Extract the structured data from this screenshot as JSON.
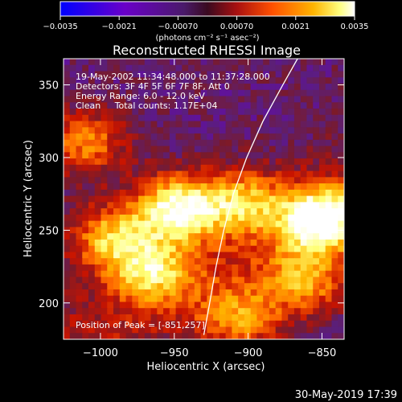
{
  "chart_data": {
    "type": "heatmap",
    "title": "Reconstructed RHESSI Image",
    "xlabel": "Heliocentric X (arcsec)",
    "ylabel": "Heliocentric Y (arcsec)",
    "xlim": [
      -1025,
      -835
    ],
    "ylim": [
      175,
      368
    ],
    "xticks": [
      -1000,
      -950,
      -900,
      -850
    ],
    "xtick_labels": [
      "−1000",
      "−950",
      "−900",
      "−850"
    ],
    "yticks": [
      200,
      250,
      300,
      350
    ],
    "ytick_labels": [
      "200",
      "250",
      "300",
      "350"
    ],
    "colorbar": {
      "min": -0.0035,
      "max": 0.0035,
      "tick_labels": [
        "−0.0035",
        "−0.0021",
        "−0.00070",
        "0.00070",
        "0.0021",
        "0.0035"
      ],
      "units_label": "(photons cm⁻² s⁻¹ asec⁻²)"
    },
    "colormap": [
      "#0000ff",
      "#6a00c8",
      "#5a1f7a",
      "#7a1a2a",
      "#c81400",
      "#ff6a00",
      "#ffb400",
      "#ffff78",
      "#ffffff"
    ],
    "peak": {
      "x": -851,
      "y": 257
    },
    "sources": [
      {
        "x": -948,
        "y": 265,
        "peak": 0.0033
      },
      {
        "x": -851,
        "y": 257,
        "peak": 0.0035
      },
      {
        "x": -992,
        "y": 245,
        "peak": 0.0018
      },
      {
        "x": -905,
        "y": 270,
        "peak": 0.0016
      },
      {
        "x": -965,
        "y": 222,
        "peak": 0.0016
      },
      {
        "x": -1010,
        "y": 310,
        "peak": 0.0011
      },
      {
        "x": -905,
        "y": 190,
        "peak": 0.0012
      },
      {
        "x": -862,
        "y": 215,
        "peak": 0.0013
      }
    ],
    "limb_curve": [
      {
        "x": -930.0,
        "y": 178
      },
      {
        "x": -926.0,
        "y": 200
      },
      {
        "x": -921.7,
        "y": 225
      },
      {
        "x": -916.5,
        "y": 250
      },
      {
        "x": -910.0,
        "y": 275
      },
      {
        "x": -901.0,
        "y": 300
      },
      {
        "x": -890.0,
        "y": 325
      },
      {
        "x": -876.5,
        "y": 350
      },
      {
        "x": -866.5,
        "y": 368
      }
    ],
    "annotations": {
      "time_range": "19-May-2002 11:34:48.000 to 11:37:28.000",
      "detectors": "Detectors: 3F 4F 5F 6F 7F 8F, Att 0",
      "energy": "Energy Range: 6.0 - 12.0 keV",
      "clean": "Clean     Total counts: 1.17E+04",
      "peak_text": "Position of Peak = [-851,257]"
    }
  },
  "timestamp": "30-May-2019 17:39"
}
